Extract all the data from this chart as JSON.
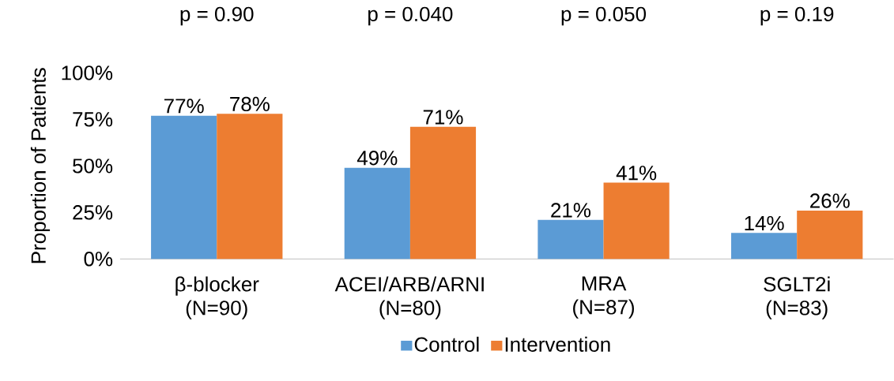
{
  "chart_data": {
    "type": "bar",
    "ylabel": "Proportion of Patients",
    "categories": [
      "β-blocker (N=90)",
      "ACEI/ARB/ARNI (N=80)",
      "MRA (N=87)",
      "SGLT2i (N=83)"
    ],
    "series": [
      {
        "name": "Control",
        "color": "#5b9bd5",
        "values": [
          77,
          49,
          21,
          14
        ],
        "value_labels": [
          "77%",
          "49%",
          "21%",
          "14%"
        ]
      },
      {
        "name": "Intervention",
        "color": "#ed7d31",
        "values": [
          78,
          71,
          41,
          26
        ],
        "value_labels": [
          "78%",
          "71%",
          "41%",
          "26%"
        ]
      }
    ],
    "ylim": [
      0,
      100
    ],
    "yticks": [
      {
        "value": 0,
        "label": "0%"
      },
      {
        "value": 25,
        "label": "25%"
      },
      {
        "value": 50,
        "label": "50%"
      },
      {
        "value": 75,
        "label": "75%"
      },
      {
        "value": 100,
        "label": "100%"
      }
    ],
    "annotations": [
      "p = 0.90",
      "p = 0.040",
      "p = 0.050",
      "p = 0.19"
    ],
    "legend": "bottom",
    "grid": false
  }
}
